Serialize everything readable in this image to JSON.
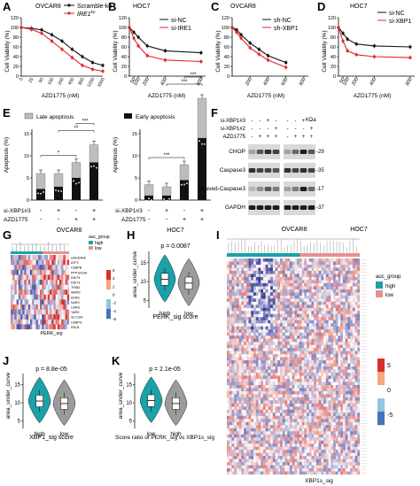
{
  "chart_data": [
    {
      "panel": "A",
      "type": "line",
      "title": "OVCAR8",
      "xlabel": "AZD1775 (nM)",
      "ylabel": "Cell Viability (%)",
      "x": [
        0,
        25,
        50,
        100,
        200,
        400,
        800,
        1200,
        1600
      ],
      "xtick_labels": [
        "0",
        "25",
        "50",
        "100",
        "200",
        "400",
        "800",
        "1200",
        "1600"
      ],
      "yticks": [
        0,
        20,
        40,
        60,
        80,
        100,
        120
      ],
      "ylim": [
        0,
        120
      ],
      "series": [
        {
          "name": "Scramble-ko",
          "values": [
            100,
            98,
            95,
            85,
            72,
            55,
            40,
            28,
            22
          ]
        },
        {
          "name": "IRE1",
          "values": [
            100,
            96,
            88,
            72,
            55,
            38,
            22,
            14,
            10
          ]
        }
      ]
    },
    {
      "panel": "B",
      "type": "line",
      "title": "HOC7",
      "xlabel": "AZD1775 (nM)",
      "ylabel": "Cell Viability (%)",
      "x": [
        0,
        50,
        100,
        200,
        400,
        800
      ],
      "xticks": [
        50,
        100,
        200,
        400,
        800
      ],
      "yticks": [
        0,
        20,
        40,
        60,
        80,
        100,
        120
      ],
      "ylim": [
        0,
        120
      ],
      "series": [
        {
          "name": "si-NC",
          "values": [
            100,
            90,
            80,
            62,
            52,
            48
          ]
        },
        {
          "name": "si-IRE1",
          "values": [
            100,
            78,
            62,
            42,
            33,
            30
          ]
        }
      ]
    },
    {
      "panel": "C",
      "type": "line",
      "title": "OVCAR8",
      "xlabel": "AZD1775 (nM)",
      "ylabel": "Cell Viability (%)",
      "x": [
        0,
        50,
        100,
        200,
        300,
        400,
        600
      ],
      "xticks": [
        200,
        400,
        600,
        800
      ],
      "yticks": [
        0,
        20,
        40,
        60,
        80,
        100,
        120
      ],
      "ylim": [
        0,
        120
      ],
      "series": [
        {
          "name": "sh-NC",
          "values": [
            100,
            95,
            85,
            68,
            55,
            42,
            28
          ]
        },
        {
          "name": "sh-XBP1",
          "values": [
            100,
            90,
            78,
            58,
            45,
            33,
            18
          ]
        }
      ]
    },
    {
      "panel": "D",
      "type": "line",
      "title": "HOC7",
      "xlabel": "AZD1775 (nM)",
      "ylabel": "Cell Viability (%)",
      "x": [
        0,
        50,
        100,
        200,
        400,
        800
      ],
      "xticks": [
        50,
        100,
        200,
        400,
        800
      ],
      "yticks": [
        0,
        20,
        40,
        60,
        80,
        100,
        120
      ],
      "ylim": [
        0,
        120
      ],
      "series": [
        {
          "name": "si-NC",
          "values": [
            100,
            88,
            76,
            66,
            62,
            60
          ]
        },
        {
          "name": "si-XBP1",
          "values": [
            100,
            72,
            52,
            44,
            40,
            38
          ]
        }
      ]
    },
    {
      "panel": "E",
      "type": "bar",
      "title": "",
      "ylabel": "Apoptosis (%)",
      "legend": [
        "Late apoptosis",
        "Early apoptosis"
      ],
      "yticks": [
        0,
        5,
        10,
        15
      ],
      "ylim": [
        0,
        16
      ],
      "groups": [
        {
          "cell_line": "OVCAR8",
          "early": [
            2.5,
            3,
            5,
            8.5
          ],
          "late": [
            3.5,
            3,
            3.5,
            4
          ],
          "sig": [
            {
              "from": 0,
              "to": 2,
              "label": "*"
            },
            {
              "from": 1,
              "to": 3,
              "label": "**"
            },
            {
              "from": 2,
              "to": 3,
              "label": "***"
            }
          ]
        },
        {
          "cell_line": "HOC7",
          "early": [
            1,
            1,
            4.5,
            14
          ],
          "late": [
            2.5,
            2,
            3.5,
            9
          ],
          "sig": [
            {
              "from": 0,
              "to": 2,
              "label": "***"
            },
            {
              "from": 1,
              "to": 3,
              "label": "***"
            },
            {
              "from": 2,
              "to": 3,
              "label": "***"
            }
          ]
        }
      ],
      "row_labels": [
        "si-XBP1#3",
        "AZD1775"
      ],
      "row_signs": [
        [
          "-",
          "+",
          "-",
          "+"
        ],
        [
          "-",
          "-",
          "+",
          "+"
        ]
      ]
    },
    {
      "panel": "H",
      "type": "violin",
      "title": "p = 0.0087",
      "xlabel": "PERK_sig score",
      "ylabel": "area_under_curve",
      "categories": [
        "high",
        "low"
      ],
      "medians": [
        10.6,
        9.6
      ],
      "yticks": [
        5,
        10,
        15
      ],
      "ylim": [
        3,
        18
      ],
      "colors": [
        "#1aa2a8",
        "#9b9b9b"
      ]
    },
    {
      "panel": "J",
      "type": "violin",
      "title": "p = 8.8e-05",
      "xlabel": "XBP1_sig score",
      "ylabel": "area_under_curve",
      "categories": [
        "high",
        "low"
      ],
      "medians": [
        10.5,
        9.8
      ],
      "yticks": [
        5,
        10,
        15
      ],
      "ylim": [
        3,
        18
      ],
      "colors": [
        "#1aa2a8",
        "#9b9b9b"
      ]
    },
    {
      "panel": "K",
      "type": "violin",
      "title": "p = 2.1e-05",
      "xlabel": "Score ratio of PERK_sig vs XBP1s_sig",
      "ylabel": "area_under_curve",
      "categories": [
        "low",
        "high"
      ],
      "medians": [
        10.6,
        9.8
      ],
      "yticks": [
        5,
        10,
        15
      ],
      "ylim": [
        3,
        18
      ],
      "colors": [
        "#1aa2a8",
        "#9b9b9b"
      ]
    }
  ],
  "panel_labels": {
    "A": "A",
    "B": "B",
    "C": "C",
    "D": "D",
    "E": "E",
    "F": "F",
    "G": "G",
    "H": "H",
    "I": "I",
    "J": "J",
    "K": "K"
  },
  "panelA": {
    "title": "OVCAR8",
    "legend1": "Scramble-ko",
    "legend2": "IRE1",
    "legend2_sup": "ko",
    "xlabel": "AZD1775 (nM)",
    "ylabel": "Cell Viability (%)"
  },
  "panelB": {
    "title": "HOC7",
    "legend1": "si-NC",
    "legend2": "si-IRE1",
    "xlabel": "AZD1775 (nM)",
    "ylabel": "Cell Viability (%)"
  },
  "panelC": {
    "title": "OVCAR8",
    "legend1": "sh-NC",
    "legend2": "sh-XBP1",
    "xlabel": "AZD1775 (nM)",
    "ylabel": "Cell Viability (%)"
  },
  "panelD": {
    "title": "HOC7",
    "legend1": "si-NC",
    "legend2": "si-XBP1",
    "xlabel": "AZD1775 (nM)",
    "ylabel": "Cell Viability (%)"
  },
  "panelE": {
    "legend_late": "Late apoptosis",
    "legend_early": "Early apoptosis",
    "ylabel": "Apoptosis (%)",
    "row1_label": "si-XBP1#3",
    "row2_label": "AZD1775",
    "group1": "OVCAR8",
    "group2": "HOC7"
  },
  "panelF": {
    "header_rows": [
      {
        "label": "si-XBP1#3",
        "signs": [
          "-",
          "-",
          "+",
          "-",
          "-",
          "-",
          "+",
          "-"
        ]
      },
      {
        "label": "si-XBP1#2",
        "signs": [
          "-",
          "-",
          "-",
          "+",
          "-",
          "-",
          "-",
          "+"
        ]
      },
      {
        "label": "AZD1775",
        "signs": [
          "-",
          "+",
          "+",
          "+",
          "-",
          "+",
          "+",
          "+"
        ]
      }
    ],
    "kda_label": "KDa",
    "blots": [
      {
        "name": "CHOP",
        "kda": "29"
      },
      {
        "name": "Caspase3",
        "kda": "35"
      },
      {
        "name": "cleaved-Caspase3",
        "kda": "17"
      },
      {
        "name": "GAPDH",
        "kda": "37"
      }
    ],
    "cell_lines": [
      "OVCAR8",
      "HOC7"
    ]
  },
  "panelG": {
    "genes": [
      "GADD45A",
      "ATF3",
      "CEBPB",
      "PPP1R15A",
      "DDIT4",
      "DDIT3",
      "TRIB3",
      "WARS",
      "ASNS",
      "SARS",
      "CARS",
      "YARS",
      "SLC1A4",
      "CEBPG",
      "RELB"
    ],
    "legend_title": "auc_group",
    "legend_high": "high",
    "legend_low": "low",
    "scale_ticks": [
      "6",
      "4",
      "2",
      "0",
      "-2",
      "-4",
      "-6"
    ],
    "xlabel": "PERK_sig"
  },
  "panelI": {
    "legend_title": "auc_group",
    "legend_high": "high",
    "legend_low": "low",
    "scale_ticks": [
      "5",
      "0",
      "-5"
    ],
    "xlabel": "XBP1s_sig"
  },
  "colors": {
    "high": "#1aa2a8",
    "low": "#e88f8f",
    "series_black": "#111111",
    "series_red": "#e3242b",
    "heat_pos": "#d73027",
    "heat_neg": "#313695"
  }
}
